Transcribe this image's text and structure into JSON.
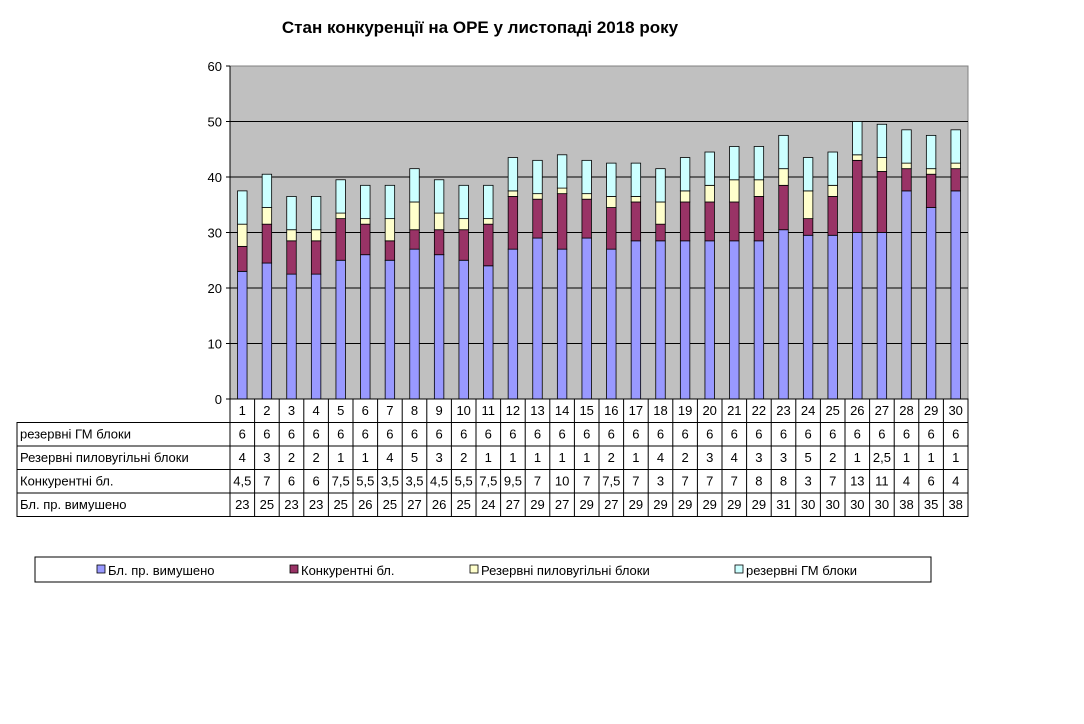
{
  "chart_data": {
    "type": "bar",
    "stacked": true,
    "title": "Стан конкуренції на ОРЕ  у листопаді 2018 року",
    "ylim": [
      0,
      60
    ],
    "yticks": [
      "0",
      "10",
      "20",
      "30",
      "40",
      "50",
      "60"
    ],
    "categories": [
      "1",
      "2",
      "3",
      "4",
      "5",
      "6",
      "7",
      "8",
      "9",
      "10",
      "11",
      "12",
      "13",
      "14",
      "15",
      "16",
      "17",
      "18",
      "19",
      "20",
      "21",
      "22",
      "23",
      "24",
      "25",
      "26",
      "27",
      "28",
      "29",
      "30"
    ],
    "series": [
      {
        "name": "Бл. пр. вимушено",
        "color": "#9999ff",
        "values": [
          23,
          24.5,
          22.5,
          22.5,
          25,
          26,
          25,
          27,
          26,
          25,
          24,
          27,
          29,
          27,
          29,
          27,
          28.5,
          28.5,
          28.5,
          28.5,
          28.5,
          28.5,
          30.5,
          29.5,
          29.5,
          30,
          30,
          37.5,
          34.5,
          37.5
        ],
        "labels": [
          "23",
          "25",
          "23",
          "23",
          "25",
          "26",
          "25",
          "27",
          "26",
          "25",
          "24",
          "27",
          "29",
          "27",
          "29",
          "27",
          "29",
          "29",
          "29",
          "29",
          "29",
          "29",
          "31",
          "30",
          "30",
          "30",
          "30",
          "38",
          "35",
          "38"
        ]
      },
      {
        "name": "Конкурентні  бл.",
        "color": "#993366",
        "values": [
          4.5,
          7,
          6,
          6,
          7.5,
          5.5,
          3.5,
          3.5,
          4.5,
          5.5,
          7.5,
          9.5,
          7,
          10,
          7,
          7.5,
          7,
          3,
          7,
          7,
          7,
          8,
          8,
          3,
          7,
          13,
          11,
          4,
          6,
          4
        ],
        "labels": [
          "4,5",
          "7",
          "6",
          "6",
          "7,5",
          "5,5",
          "3,5",
          "3,5",
          "4,5",
          "5,5",
          "7,5",
          "9,5",
          "7",
          "10",
          "7",
          "7,5",
          "7",
          "3",
          "7",
          "7",
          "7",
          "8",
          "8",
          "3",
          "7",
          "13",
          "11",
          "4",
          "6",
          "4"
        ]
      },
      {
        "name": "Резервні пиловугільні  блоки",
        "color": "#ffffcc",
        "values": [
          4,
          3,
          2,
          2,
          1,
          1,
          4,
          5,
          3,
          2,
          1,
          1,
          1,
          1,
          1,
          2,
          1,
          4,
          2,
          3,
          4,
          3,
          3,
          5,
          2,
          1,
          2.5,
          1,
          1,
          1
        ],
        "labels": [
          "4",
          "3",
          "2",
          "2",
          "1",
          "1",
          "4",
          "5",
          "3",
          "2",
          "1",
          "1",
          "1",
          "1",
          "1",
          "2",
          "1",
          "4",
          "2",
          "3",
          "4",
          "3",
          "3",
          "5",
          "2",
          "1",
          "2,5",
          "1",
          "1",
          "1"
        ]
      },
      {
        "name": "резервні ГМ блоки",
        "color": "#ccffff",
        "values": [
          6,
          6,
          6,
          6,
          6,
          6,
          6,
          6,
          6,
          6,
          6,
          6,
          6,
          6,
          6,
          6,
          6,
          6,
          6,
          6,
          6,
          6,
          6,
          6,
          6,
          6,
          6,
          6,
          6,
          6
        ],
        "labels": [
          "6",
          "6",
          "6",
          "6",
          "6",
          "6",
          "6",
          "6",
          "6",
          "6",
          "6",
          "6",
          "6",
          "6",
          "6",
          "6",
          "6",
          "6",
          "6",
          "6",
          "6",
          "6",
          "6",
          "6",
          "6",
          "6",
          "6",
          "6",
          "6",
          "6"
        ]
      }
    ],
    "table_row_labels": [
      "резервні ГМ блоки",
      "Резервні пиловугільні  блоки",
      "Конкурентні  бл.",
      "Бл. пр. вимушено"
    ],
    "legend": [
      "Бл. пр. вимушено",
      "Конкурентні бл.",
      "Резервні пиловугільні  блоки",
      "резервні ГМ блоки"
    ],
    "legend_position": "bottom",
    "plot_background": "#c0c0c0",
    "grid": true
  }
}
